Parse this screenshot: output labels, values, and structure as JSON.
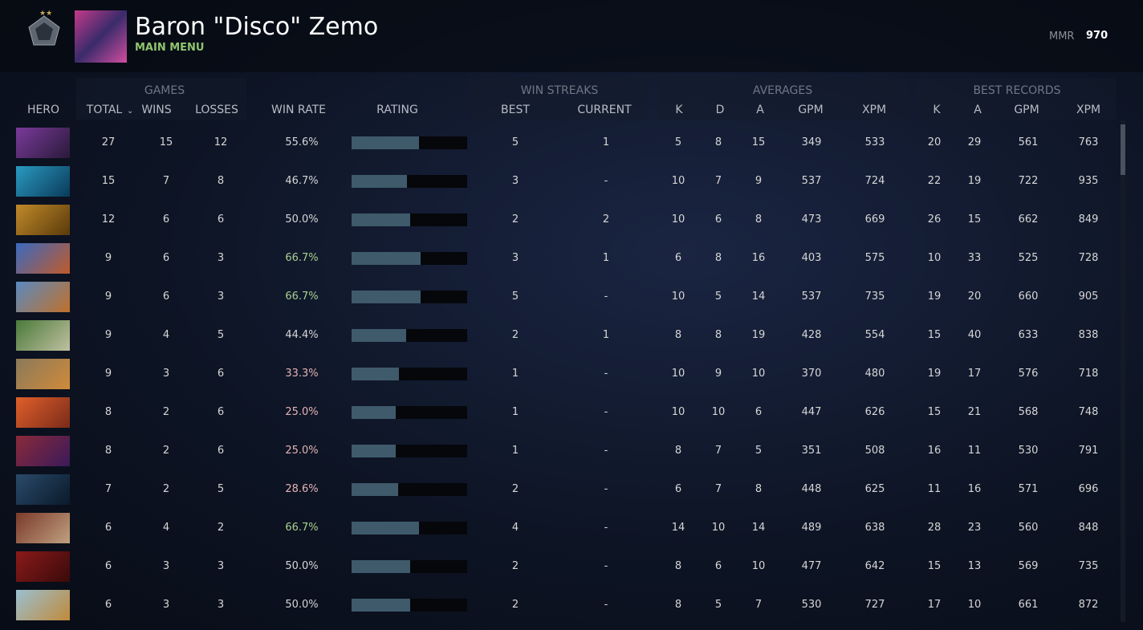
{
  "header": {
    "player_name": "Baron \"Disco\" Zemo",
    "menu_link": "MAIN MENU",
    "mmr_label": "MMR",
    "mmr_value": "970"
  },
  "table": {
    "group_headers": [
      "GAMES",
      "WIN STREAKS",
      "AVERAGES",
      "BEST RECORDS"
    ],
    "column_headers": [
      "HERO",
      "TOTAL",
      "WINS",
      "LOSSES",
      "WIN RATE",
      "RATING",
      "BEST",
      "CURRENT",
      "K",
      "D",
      "A",
      "GPM",
      "XPM",
      "K",
      "A",
      "GPM",
      "XPM"
    ],
    "rating_range": [
      0,
      100
    ],
    "rating_color": "#3f5a6b",
    "rows": [
      {
        "total": 27,
        "wins": 15,
        "losses": 12,
        "win_rate": "55.6%",
        "win_rate_color": "#d6d6d6",
        "rating": 58,
        "best": 5,
        "current": "1",
        "avg": [
          5,
          8,
          15,
          349,
          533
        ],
        "best_records": [
          20,
          29,
          561,
          763
        ]
      },
      {
        "total": 15,
        "wins": 7,
        "losses": 8,
        "win_rate": "46.7%",
        "win_rate_color": "#d6d6d6",
        "rating": 48,
        "best": 3,
        "current": "-",
        "avg": [
          10,
          7,
          9,
          537,
          724
        ],
        "best_records": [
          22,
          19,
          722,
          935
        ]
      },
      {
        "total": 12,
        "wins": 6,
        "losses": 6,
        "win_rate": "50.0%",
        "win_rate_color": "#d6d6d6",
        "rating": 51,
        "best": 2,
        "current": "2",
        "avg": [
          10,
          6,
          8,
          473,
          669
        ],
        "best_records": [
          26,
          15,
          662,
          849
        ]
      },
      {
        "total": 9,
        "wins": 6,
        "losses": 3,
        "win_rate": "66.7%",
        "win_rate_color": "#a9d08e",
        "rating": 60,
        "best": 3,
        "current": "1",
        "avg": [
          6,
          8,
          16,
          403,
          575
        ],
        "best_records": [
          10,
          33,
          525,
          728
        ]
      },
      {
        "total": 9,
        "wins": 6,
        "losses": 3,
        "win_rate": "66.7%",
        "win_rate_color": "#a9d08e",
        "rating": 60,
        "best": 5,
        "current": "-",
        "avg": [
          10,
          5,
          14,
          537,
          735
        ],
        "best_records": [
          19,
          20,
          660,
          905
        ]
      },
      {
        "total": 9,
        "wins": 4,
        "losses": 5,
        "win_rate": "44.4%",
        "win_rate_color": "#d6d6d6",
        "rating": 47,
        "best": 2,
        "current": "1",
        "avg": [
          8,
          8,
          19,
          428,
          554
        ],
        "best_records": [
          15,
          40,
          633,
          838
        ]
      },
      {
        "total": 9,
        "wins": 3,
        "losses": 6,
        "win_rate": "33.3%",
        "win_rate_color": "#e4b3b3",
        "rating": 41,
        "best": 1,
        "current": "-",
        "avg": [
          10,
          9,
          10,
          370,
          480
        ],
        "best_records": [
          19,
          17,
          576,
          718
        ]
      },
      {
        "total": 8,
        "wins": 2,
        "losses": 6,
        "win_rate": "25.0%",
        "win_rate_color": "#e4b3b3",
        "rating": 38,
        "best": 1,
        "current": "-",
        "avg": [
          10,
          10,
          6,
          447,
          626
        ],
        "best_records": [
          15,
          21,
          568,
          748
        ]
      },
      {
        "total": 8,
        "wins": 2,
        "losses": 6,
        "win_rate": "25.0%",
        "win_rate_color": "#e4b3b3",
        "rating": 38,
        "best": 1,
        "current": "-",
        "avg": [
          8,
          7,
          5,
          351,
          508
        ],
        "best_records": [
          16,
          11,
          530,
          791
        ]
      },
      {
        "total": 7,
        "wins": 2,
        "losses": 5,
        "win_rate": "28.6%",
        "win_rate_color": "#e4b3b3",
        "rating": 40,
        "best": 2,
        "current": "-",
        "avg": [
          6,
          7,
          8,
          448,
          625
        ],
        "best_records": [
          11,
          16,
          571,
          696
        ]
      },
      {
        "total": 6,
        "wins": 4,
        "losses": 2,
        "win_rate": "66.7%",
        "win_rate_color": "#a9d08e",
        "rating": 58,
        "best": 4,
        "current": "-",
        "avg": [
          14,
          10,
          14,
          489,
          638
        ],
        "best_records": [
          28,
          23,
          560,
          848
        ]
      },
      {
        "total": 6,
        "wins": 3,
        "losses": 3,
        "win_rate": "50.0%",
        "win_rate_color": "#d6d6d6",
        "rating": 51,
        "best": 2,
        "current": "-",
        "avg": [
          8,
          6,
          10,
          477,
          642
        ],
        "best_records": [
          15,
          13,
          569,
          735
        ]
      },
      {
        "total": 6,
        "wins": 3,
        "losses": 3,
        "win_rate": "50.0%",
        "win_rate_color": "#d6d6d6",
        "rating": 51,
        "best": 2,
        "current": "-",
        "avg": [
          8,
          5,
          7,
          530,
          727
        ],
        "best_records": [
          17,
          10,
          661,
          872
        ]
      }
    ]
  }
}
